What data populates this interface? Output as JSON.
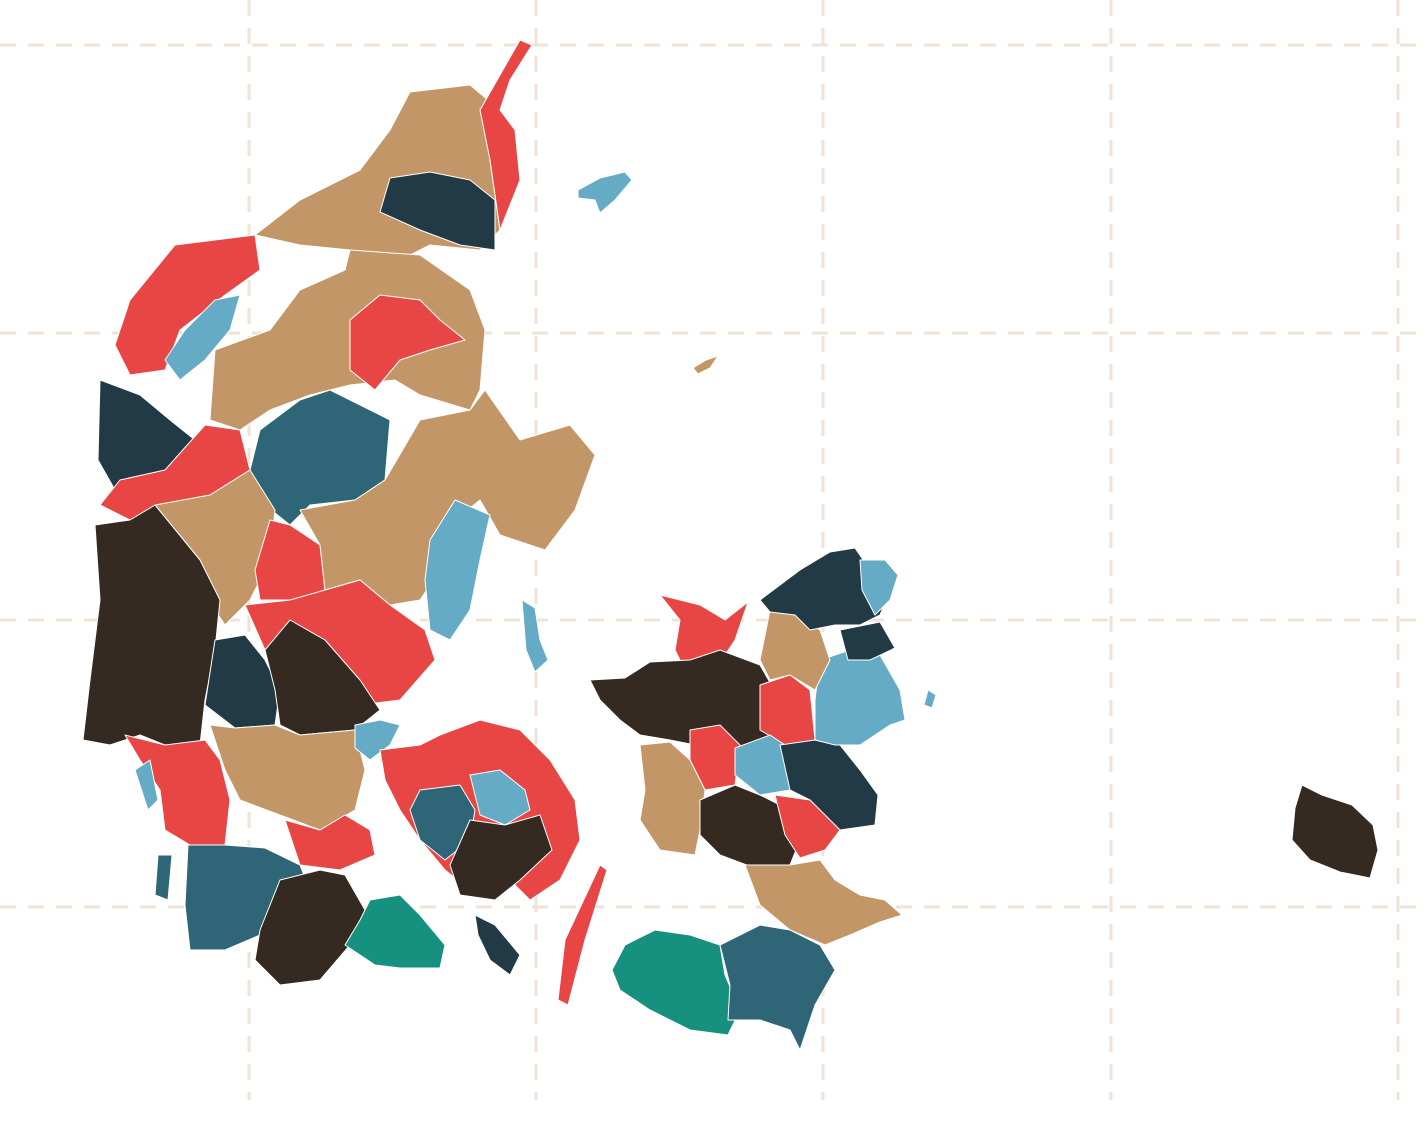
{
  "map": {
    "palette": {
      "red": "#e84545",
      "tan": "#c29666",
      "navy": "#213a46",
      "steel": "#2e6577",
      "light_blue": "#66abc5",
      "dark_brown": "#352a21",
      "teal": "#16917f"
    },
    "grid_color": "#efe3d6",
    "background": "#ffffff"
  }
}
